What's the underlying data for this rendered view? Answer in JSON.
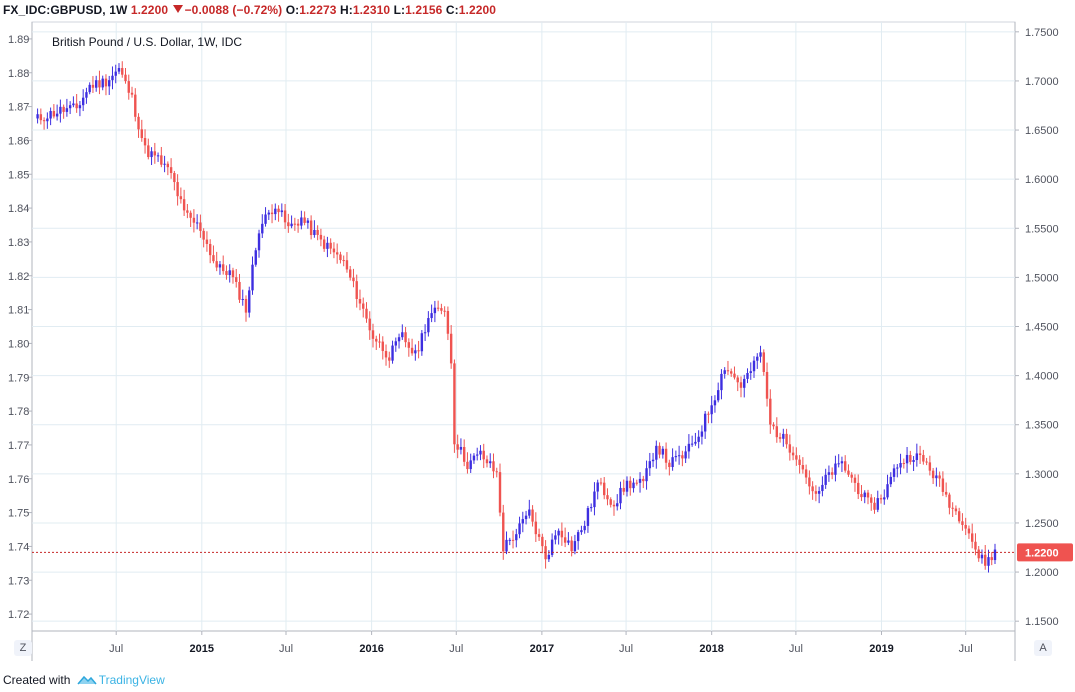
{
  "header": {
    "symbol": "FX_IDC:GBPUSD,",
    "interval": "1W",
    "last": "1.2200",
    "change": "−0.0088 (−0.72%)",
    "open_label": "O:",
    "open": "1.2273",
    "high_label": "H:",
    "high": "1.2310",
    "low_label": "L:",
    "low": "1.2156",
    "close_label": "C:",
    "close": "1.2200"
  },
  "footer": {
    "prefix": "Created with",
    "brand": "TradingView"
  },
  "corner": {
    "left": "Z",
    "right": "A"
  },
  "colors": {
    "up": "#3d2ee0",
    "down": "#ef5350",
    "grid": "#e1ecf2",
    "last_price_line": "#c62828",
    "axis_text": "#50535e"
  },
  "chart_data": {
    "type": "candlestick",
    "title": "British Pound / U.S. Dollar, 1W, IDC",
    "interval": "1W",
    "last_price_label": "1.2200",
    "left_axis": {
      "ticks": [
        "1.89",
        "1.88",
        "1.87",
        "1.86",
        "1.85",
        "1.84",
        "1.83",
        "1.82",
        "1.81",
        "1.80",
        "1.79",
        "1.78",
        "1.77",
        "1.76",
        "1.75",
        "1.74",
        "1.73",
        "1.72"
      ],
      "range": [
        1.715,
        1.895
      ]
    },
    "right_axis": {
      "ticks": [
        "1.7500",
        "1.7000",
        "1.6500",
        "1.6000",
        "1.5500",
        "1.5000",
        "1.4500",
        "1.4000",
        "1.3500",
        "1.3000",
        "1.2500",
        "1.2000",
        "1.1500"
      ],
      "range": [
        1.14,
        1.76
      ]
    },
    "x_ticks": [
      "Jul",
      "2015",
      "Jul",
      "2016",
      "Jul",
      "2017",
      "Jul",
      "2018",
      "Jul",
      "2019",
      "Jul"
    ],
    "x_tick_dates": [
      "2014-07-01",
      "2015-01-01",
      "2015-07-01",
      "2016-01-01",
      "2016-07-01",
      "2017-01-01",
      "2017-07-01",
      "2018-01-01",
      "2018-07-01",
      "2019-01-01",
      "2019-07-01"
    ],
    "grid": true,
    "series": [
      {
        "points": [
          {
            "date": "2014-01-06",
            "v": 1.66
          },
          {
            "date": "2014-02-03",
            "v": 1.665
          },
          {
            "date": "2014-03-03",
            "v": 1.67
          },
          {
            "date": "2014-04-07",
            "v": 1.672
          },
          {
            "date": "2014-05-05",
            "v": 1.695
          },
          {
            "date": "2014-06-09",
            "v": 1.7
          },
          {
            "date": "2014-07-07",
            "v": 1.712
          },
          {
            "date": "2014-08-04",
            "v": 1.682
          },
          {
            "date": "2014-09-01",
            "v": 1.63
          },
          {
            "date": "2014-09-29",
            "v": 1.62
          },
          {
            "date": "2014-10-27",
            "v": 1.605
          },
          {
            "date": "2014-11-24",
            "v": 1.565
          },
          {
            "date": "2014-12-29",
            "v": 1.55
          },
          {
            "date": "2015-02-02",
            "v": 1.51
          },
          {
            "date": "2015-03-02",
            "v": 1.505
          },
          {
            "date": "2015-04-06",
            "v": 1.468
          },
          {
            "date": "2015-05-04",
            "v": 1.55
          },
          {
            "date": "2015-06-08",
            "v": 1.575
          },
          {
            "date": "2015-07-06",
            "v": 1.55
          },
          {
            "date": "2015-08-03",
            "v": 1.56
          },
          {
            "date": "2015-09-07",
            "v": 1.54
          },
          {
            "date": "2015-10-05",
            "v": 1.528
          },
          {
            "date": "2015-11-02",
            "v": 1.515
          },
          {
            "date": "2015-12-07",
            "v": 1.475
          },
          {
            "date": "2016-01-04",
            "v": 1.44
          },
          {
            "date": "2016-02-08",
            "v": 1.42
          },
          {
            "date": "2016-03-07",
            "v": 1.44
          },
          {
            "date": "2016-04-04",
            "v": 1.42
          },
          {
            "date": "2016-05-02",
            "v": 1.46
          },
          {
            "date": "2016-06-06",
            "v": 1.47
          },
          {
            "date": "2016-06-20",
            "v": 1.415
          },
          {
            "date": "2016-06-27",
            "v": 1.335
          },
          {
            "date": "2016-07-25",
            "v": 1.31
          },
          {
            "date": "2016-08-22",
            "v": 1.32
          },
          {
            "date": "2016-09-26",
            "v": 1.3
          },
          {
            "date": "2016-10-10",
            "v": 1.225
          },
          {
            "date": "2016-11-07",
            "v": 1.24
          },
          {
            "date": "2016-12-05",
            "v": 1.26
          },
          {
            "date": "2017-01-09",
            "v": 1.215
          },
          {
            "date": "2017-02-06",
            "v": 1.245
          },
          {
            "date": "2017-03-06",
            "v": 1.225
          },
          {
            "date": "2017-04-03",
            "v": 1.25
          },
          {
            "date": "2017-05-01",
            "v": 1.29
          },
          {
            "date": "2017-06-05",
            "v": 1.27
          },
          {
            "date": "2017-07-03",
            "v": 1.29
          },
          {
            "date": "2017-08-07",
            "v": 1.29
          },
          {
            "date": "2017-09-04",
            "v": 1.33
          },
          {
            "date": "2017-10-02",
            "v": 1.31
          },
          {
            "date": "2017-11-06",
            "v": 1.32
          },
          {
            "date": "2017-12-04",
            "v": 1.34
          },
          {
            "date": "2018-01-08",
            "v": 1.38
          },
          {
            "date": "2018-01-29",
            "v": 1.41
          },
          {
            "date": "2018-03-05",
            "v": 1.39
          },
          {
            "date": "2018-04-02",
            "v": 1.41
          },
          {
            "date": "2018-04-16",
            "v": 1.425
          },
          {
            "date": "2018-05-07",
            "v": 1.35
          },
          {
            "date": "2018-06-04",
            "v": 1.335
          },
          {
            "date": "2018-07-02",
            "v": 1.32
          },
          {
            "date": "2018-08-13",
            "v": 1.275
          },
          {
            "date": "2018-09-10",
            "v": 1.3
          },
          {
            "date": "2018-10-08",
            "v": 1.31
          },
          {
            "date": "2018-11-05",
            "v": 1.29
          },
          {
            "date": "2018-12-10",
            "v": 1.265
          },
          {
            "date": "2019-01-07",
            "v": 1.28
          },
          {
            "date": "2019-02-04",
            "v": 1.31
          },
          {
            "date": "2019-03-11",
            "v": 1.32
          },
          {
            "date": "2019-04-08",
            "v": 1.31
          },
          {
            "date": "2019-05-06",
            "v": 1.29
          },
          {
            "date": "2019-06-03",
            "v": 1.265
          },
          {
            "date": "2019-07-01",
            "v": 1.25
          },
          {
            "date": "2019-07-29",
            "v": 1.215
          },
          {
            "date": "2019-08-12",
            "v": 1.21
          },
          {
            "date": "2019-09-02",
            "v": 1.22
          }
        ]
      }
    ]
  }
}
